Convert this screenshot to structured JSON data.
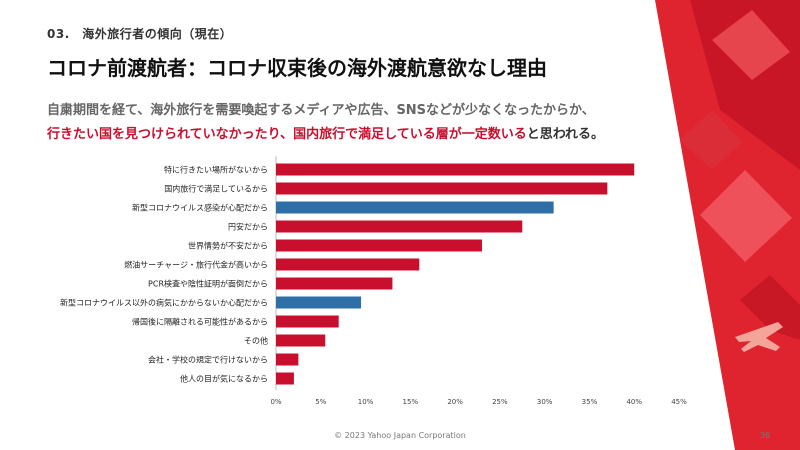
{
  "header": {
    "section_label": "03.　海外旅行者の傾向（現在）",
    "title": "コロナ前渡航者：コロナ収束後の海外渡航意欲なし理由",
    "description_line1": "自粛期間を経て、海外旅行を需要喚起するメディアや広告、SNSなどが少なくなったからか、",
    "description_line2_highlight": "行きたい国を見つけられていなかったり、国内旅行で満足している層が一定数いる",
    "description_line2_rest": "と思われる。"
  },
  "colors": {
    "accent": "#c8102e",
    "bar_red": "#c8102e",
    "bar_blue": "#2f6fa8",
    "decor_red": "#e0242f"
  },
  "chart_data": {
    "type": "bar",
    "orientation": "horizontal",
    "categories": [
      "特に行きたい場所がないから",
      "国内旅行で満足しているから",
      "新型コロナウイルス感染が心配だから",
      "円安だから",
      "世界情勢が不安だから",
      "燃油サーチャージ・旅行代金が高いから",
      "PCR検査や陰性証明が面倒だから",
      "新型コロナウイルス以外の病気にかからないか心配だから",
      "帰国後に隔離される可能性があるから",
      "その他",
      "会社・学校の規定で行けないから",
      "他人の目が気になるから"
    ],
    "values": [
      40.0,
      37.0,
      31.0,
      27.5,
      23.0,
      16.0,
      13.0,
      9.5,
      7.0,
      5.5,
      2.5,
      2.0
    ],
    "highlighted": [
      false,
      false,
      true,
      false,
      false,
      false,
      false,
      true,
      false,
      false,
      false,
      false
    ],
    "xlim": [
      0,
      45
    ],
    "xticks": [
      "0%",
      "5%",
      "10%",
      "15%",
      "20%",
      "25%",
      "30%",
      "35%",
      "40%",
      "45%"
    ],
    "grid": false
  },
  "footer": {
    "copyright": "© 2023 Yahoo Japan Corporation",
    "page_number": "36"
  }
}
